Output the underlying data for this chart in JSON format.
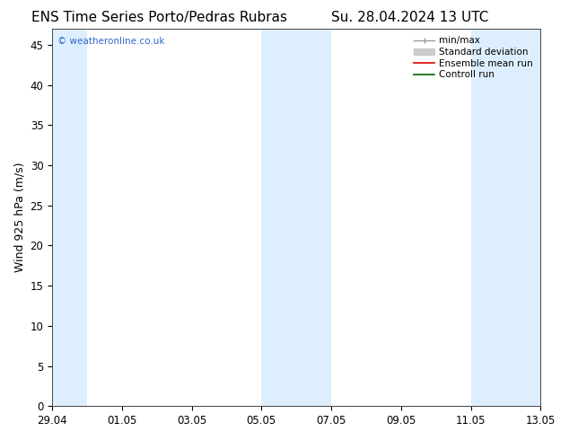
{
  "title_left": "ENS Time Series Porto/Pedras Rubras",
  "title_right": "Su. 28.04.2024 13 UTC",
  "ylabel": "Wind 925 hPa (m/s)",
  "watermark": "© weatheronline.co.uk",
  "ylim": [
    0,
    47
  ],
  "yticks": [
    0,
    5,
    10,
    15,
    20,
    25,
    30,
    35,
    40,
    45
  ],
  "xtick_labels": [
    "29.04",
    "01.05",
    "03.05",
    "05.05",
    "07.05",
    "09.05",
    "11.05",
    "13.05"
  ],
  "bg_color": "#ffffff",
  "plot_bg_color": "#ffffff",
  "shaded_color": "#ddeeff",
  "title_fontsize": 11,
  "axis_label_fontsize": 9,
  "tick_fontsize": 8.5,
  "watermark_color": "#3366cc",
  "n_xticks": 8,
  "interval": 0.142857
}
